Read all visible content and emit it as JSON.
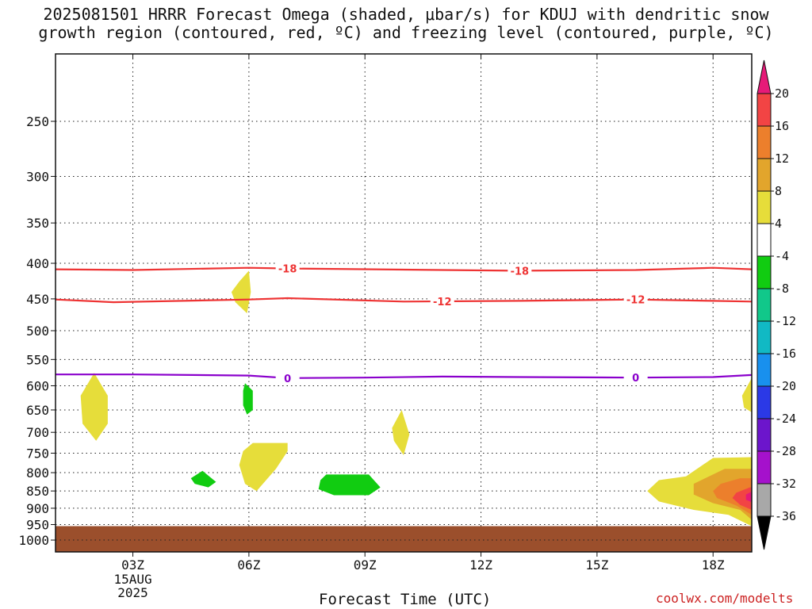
{
  "title_line1": "2025081501 HRRR Forecast Omega (shaded, μbar/s) for KDUJ with dendritic snow",
  "title_line2": "growth region (contoured, red, ºC) and freezing level (contoured, purple, ºC)",
  "xlabel": "Forecast Time (UTC)",
  "credit": "coolwx.com/modelts",
  "chart_data": {
    "type": "time-height cross section",
    "x_unit": "hours UTC since 2025081501 (01Z 15AUG2025)",
    "xlim": [
      1,
      19
    ],
    "x_ticks": [
      3,
      6,
      9,
      12,
      15,
      18
    ],
    "x_tick_labels": [
      "03Z",
      "06Z",
      "09Z",
      "12Z",
      "15Z",
      "18Z"
    ],
    "x_date_labels": [
      "15AUG",
      "2025"
    ],
    "y_scale": "log pressure (inverted)",
    "ylim": [
      1040,
      200
    ],
    "y_ticks": [
      250,
      300,
      350,
      400,
      450,
      500,
      550,
      600,
      650,
      700,
      750,
      800,
      850,
      900,
      950,
      1000
    ],
    "grid": true,
    "surface_pressure": 955,
    "surface_color": "#9b4f2c",
    "contours": [
      {
        "name": "-18",
        "color": "#ee3333",
        "level_label": "-18",
        "x": [
          1,
          3,
          6,
          7,
          11,
          13,
          16,
          18,
          19
        ],
        "p": [
          408,
          409,
          406,
          407,
          409,
          410,
          409,
          406,
          408
        ],
        "label_x": [
          7,
          13
        ]
      },
      {
        "name": "-12",
        "color": "#ee3333",
        "level_label": "-12",
        "x": [
          1,
          2.5,
          6,
          7,
          10,
          13,
          16,
          18,
          19
        ],
        "p": [
          451,
          455,
          451,
          449,
          454,
          453,
          451,
          453,
          454
        ],
        "label_x": [
          11,
          16
        ]
      },
      {
        "name": "0",
        "color": "#8a00cc",
        "level_label": "0",
        "x": [
          1,
          3,
          6,
          7,
          9,
          11,
          13,
          16,
          18,
          19
        ],
        "p": [
          578,
          578,
          580,
          585,
          584,
          582,
          583,
          584,
          583,
          579
        ],
        "label_x": [
          7,
          16
        ]
      }
    ],
    "omega_regions": [
      {
        "value_band": "4 to 8",
        "color": "#e6dd3a",
        "outline": [
          [
            2.0,
            575
          ],
          [
            2.35,
            620
          ],
          [
            2.35,
            680
          ],
          [
            2.05,
            720
          ],
          [
            1.7,
            680
          ],
          [
            1.65,
            620
          ]
        ]
      },
      {
        "value_band": "4 to 8",
        "color": "#e6dd3a",
        "outline": [
          [
            6.0,
            410
          ],
          [
            6.05,
            440
          ],
          [
            5.95,
            472
          ],
          [
            5.65,
            455
          ],
          [
            5.55,
            440
          ],
          [
            5.75,
            425
          ]
        ]
      },
      {
        "value_band": "4 to 8",
        "color": "#e6dd3a",
        "outline": [
          [
            6.1,
            725
          ],
          [
            7.0,
            725
          ],
          [
            7.0,
            745
          ],
          [
            6.7,
            790
          ],
          [
            6.2,
            850
          ],
          [
            5.9,
            830
          ],
          [
            5.75,
            780
          ],
          [
            5.85,
            745
          ]
        ]
      },
      {
        "value_band": "4 to 8",
        "color": "#e6dd3a",
        "outline": [
          [
            9.95,
            650
          ],
          [
            10.15,
            705
          ],
          [
            10.0,
            755
          ],
          [
            9.75,
            720
          ],
          [
            9.7,
            690
          ]
        ]
      },
      {
        "value_band": "4 to 8",
        "color": "#e6dd3a",
        "outline": [
          [
            19.0,
            585
          ],
          [
            18.75,
            620
          ],
          [
            18.8,
            645
          ],
          [
            19.0,
            655
          ]
        ]
      },
      {
        "value_band": "-8 to -4",
        "color": "#11cc11",
        "outline": [
          [
            5.9,
            595
          ],
          [
            6.1,
            610
          ],
          [
            6.1,
            650
          ],
          [
            5.95,
            660
          ],
          [
            5.85,
            640
          ],
          [
            5.85,
            610
          ]
        ]
      },
      {
        "value_band": "-8 to -4",
        "color": "#11cc11",
        "outline": [
          [
            4.8,
            795
          ],
          [
            5.15,
            825
          ],
          [
            4.95,
            840
          ],
          [
            4.6,
            830
          ],
          [
            4.5,
            815
          ]
        ]
      },
      {
        "value_band": "-8 to -4",
        "color": "#11cc11",
        "outline": [
          [
            8.0,
            805
          ],
          [
            9.1,
            805
          ],
          [
            9.4,
            840
          ],
          [
            9.1,
            862
          ],
          [
            8.2,
            862
          ],
          [
            7.8,
            845
          ],
          [
            7.85,
            820
          ]
        ]
      },
      {
        "value_band": "4 to 8",
        "color": "#e6dd3a",
        "outline": [
          [
            18.0,
            762
          ],
          [
            19.0,
            760
          ],
          [
            19.0,
            955
          ],
          [
            18.4,
            920
          ],
          [
            17.5,
            905
          ],
          [
            16.6,
            880
          ],
          [
            16.3,
            850
          ],
          [
            16.6,
            820
          ],
          [
            17.3,
            810
          ]
        ]
      },
      {
        "value_band": "8 to 12",
        "color": "#e2a52c",
        "outline": [
          [
            18.3,
            790
          ],
          [
            19.0,
            790
          ],
          [
            19.0,
            935
          ],
          [
            18.7,
            905
          ],
          [
            18.0,
            885
          ],
          [
            17.5,
            860
          ],
          [
            17.5,
            830
          ]
        ]
      },
      {
        "value_band": "12 to 16",
        "color": "#ec7f2c",
        "outline": [
          [
            18.7,
            815
          ],
          [
            19.0,
            815
          ],
          [
            19.0,
            920
          ],
          [
            18.6,
            892
          ],
          [
            18.1,
            870
          ],
          [
            18.0,
            850
          ],
          [
            18.2,
            830
          ]
        ]
      },
      {
        "value_band": "16 to 20",
        "color": "#f24444",
        "outline": [
          [
            18.95,
            840
          ],
          [
            19.0,
            840
          ],
          [
            19.0,
            905
          ],
          [
            18.7,
            890
          ],
          [
            18.5,
            870
          ],
          [
            18.6,
            855
          ]
        ]
      },
      {
        "value_band": "> 20",
        "color": "#e61a78",
        "outline": [
          [
            19.0,
            852
          ],
          [
            19.0,
            882
          ],
          [
            18.85,
            875
          ],
          [
            18.85,
            860
          ]
        ]
      }
    ],
    "colorbar": {
      "labels": [
        "20",
        "16",
        "12",
        "8",
        "4",
        "-4",
        "-8",
        "-12",
        "-16",
        "-20",
        "-24",
        "-28",
        "-32",
        "-36"
      ],
      "colors": [
        "#e61a78",
        "#f24444",
        "#ec7f2c",
        "#e2a52c",
        "#e6dd3a",
        "#ffffff",
        "#11cc11",
        "#11c88a",
        "#11b9c4",
        "#1890ee",
        "#2b39e6",
        "#6c15cc",
        "#a511cc",
        "#a8a8a8",
        "#000000"
      ]
    }
  }
}
